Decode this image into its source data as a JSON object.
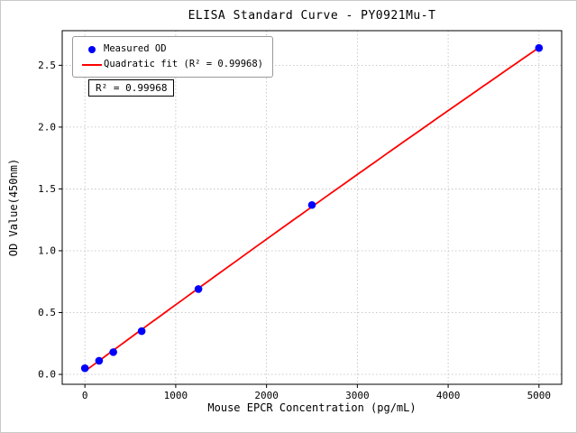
{
  "chart_data": {
    "type": "scatter",
    "title": "ELISA Standard Curve - PY0921Mu-T",
    "xlabel": "Mouse EPCR Concentration (pg/mL)",
    "ylabel": "OD Value(450nm)",
    "annotation": "R² = 0.99968",
    "xlim": [
      -250,
      5250
    ],
    "ylim": [
      -0.08,
      2.78
    ],
    "x_ticks": [
      0,
      1000,
      2000,
      3000,
      4000,
      5000
    ],
    "x_tick_labels": [
      "0",
      "1000",
      "2000",
      "3000",
      "4000",
      "5000"
    ],
    "y_ticks": [
      0.0,
      0.5,
      1.0,
      1.5,
      2.0,
      2.5
    ],
    "y_tick_labels": [
      "0.0",
      "0.5",
      "1.0",
      "1.5",
      "2.0",
      "2.5"
    ],
    "grid": true,
    "grid_color": "#bcbcbc",
    "legend_position": "upper-left",
    "series": [
      {
        "name": "Measured OD",
        "kind": "scatter",
        "color": "#0000ff",
        "x": [
          0,
          156.25,
          312.5,
          625,
          1250,
          2500,
          5000
        ],
        "y": [
          0.05,
          0.11,
          0.18,
          0.35,
          0.69,
          1.37,
          2.64
        ]
      },
      {
        "name": "Quadratic fit (R² = 0.99968)",
        "kind": "line",
        "fit": "quadratic",
        "color": "#ff0000"
      }
    ]
  }
}
